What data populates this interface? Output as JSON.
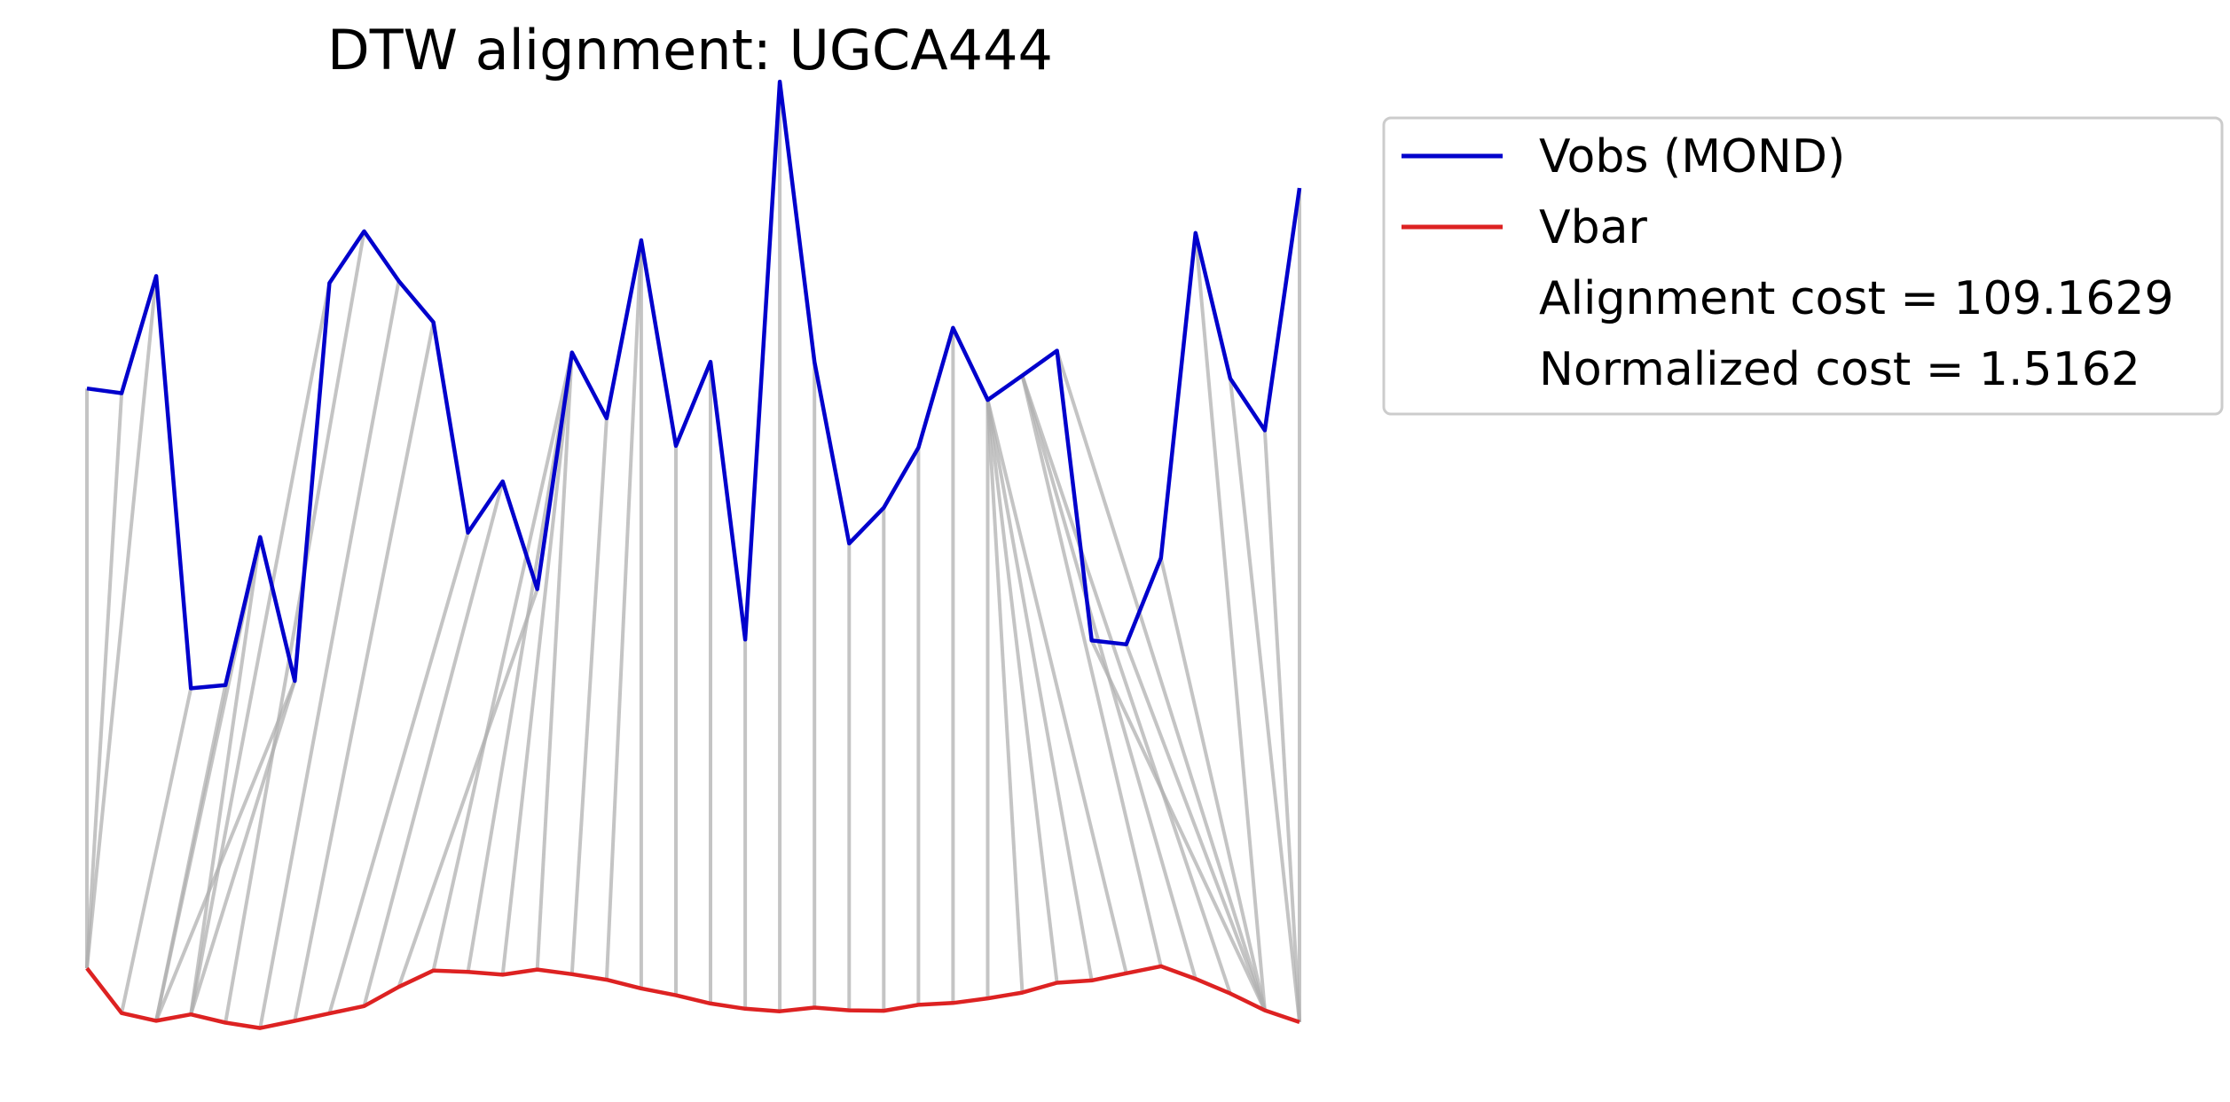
{
  "chart_data": {
    "type": "line",
    "title": "DTW alignment: UGCA444",
    "xlabel": "",
    "ylabel": "",
    "axes_visible": false,
    "grid": false,
    "legend_placement": "outside-top-right",
    "series": [
      {
        "name": "Vobs (MOND)",
        "color": "#0000cc",
        "values": [
          0.4716,
          0.4681,
          0.555,
          0.2491,
          0.2515,
          0.3613,
          0.2546,
          0.5499,
          0.5882,
          0.5514,
          0.5208,
          0.3646,
          0.4026,
          0.3227,
          0.4983,
          0.4495,
          0.5816,
          0.429,
          0.4914,
          0.2853,
          0.6993,
          0.4913,
          0.3566,
          0.3831,
          0.4277,
          0.5166,
          0.4631,
          0.4812,
          0.4996,
          0.2846,
          0.2817,
          0.3458,
          0.587,
          0.479,
          0.4405,
          0.6203
        ]
      },
      {
        "name": "Vbar",
        "color": "#dd2222",
        "values": [
          0.0414,
          0.0081,
          0.0024,
          0.0071,
          0.001,
          -0.003,
          0.0023,
          0.0078,
          0.0133,
          0.0275,
          0.0397,
          0.0386,
          0.0366,
          0.0404,
          0.037,
          0.0328,
          0.0264,
          0.0213,
          0.0152,
          0.0113,
          0.0094,
          0.0122,
          0.0101,
          0.0098,
          0.0142,
          0.0156,
          0.019,
          0.0233,
          0.0306,
          0.0323,
          0.0376,
          0.0428,
          0.0335,
          0.0226,
          0.0101,
          0.0014
        ]
      }
    ],
    "alignment_path": [
      [
        0,
        0
      ],
      [
        1,
        0
      ],
      [
        2,
        0
      ],
      [
        3,
        1
      ],
      [
        4,
        2
      ],
      [
        5,
        2
      ],
      [
        5,
        3
      ],
      [
        6,
        2
      ],
      [
        6,
        3
      ],
      [
        7,
        3
      ],
      [
        8,
        4
      ],
      [
        9,
        5
      ],
      [
        10,
        6
      ],
      [
        11,
        7
      ],
      [
        12,
        8
      ],
      [
        13,
        9
      ],
      [
        14,
        10
      ],
      [
        14,
        11
      ],
      [
        14,
        12
      ],
      [
        14,
        13
      ],
      [
        15,
        14
      ],
      [
        16,
        15
      ],
      [
        16,
        16
      ],
      [
        17,
        17
      ],
      [
        18,
        18
      ],
      [
        19,
        19
      ],
      [
        20,
        20
      ],
      [
        21,
        21
      ],
      [
        22,
        22
      ],
      [
        23,
        23
      ],
      [
        24,
        24
      ],
      [
        25,
        25
      ],
      [
        26,
        26
      ],
      [
        26,
        27
      ],
      [
        26,
        28
      ],
      [
        26,
        29
      ],
      [
        26,
        30
      ],
      [
        27,
        31
      ],
      [
        27,
        32
      ],
      [
        27,
        33
      ],
      [
        28,
        34
      ],
      [
        29,
        34
      ],
      [
        30,
        34
      ],
      [
        31,
        34
      ],
      [
        32,
        34
      ],
      [
        33,
        35
      ],
      [
        34,
        35
      ],
      [
        35,
        35
      ]
    ],
    "legend": {
      "entries": [
        {
          "label": "Vobs (MOND)",
          "color": "#0000cc"
        },
        {
          "label": "Vbar",
          "color": "#dd2222"
        }
      ],
      "notes": [
        "Alignment cost = 109.1629",
        "Normalized cost = 1.5162"
      ]
    },
    "connector_color": "#b0b0b0"
  }
}
